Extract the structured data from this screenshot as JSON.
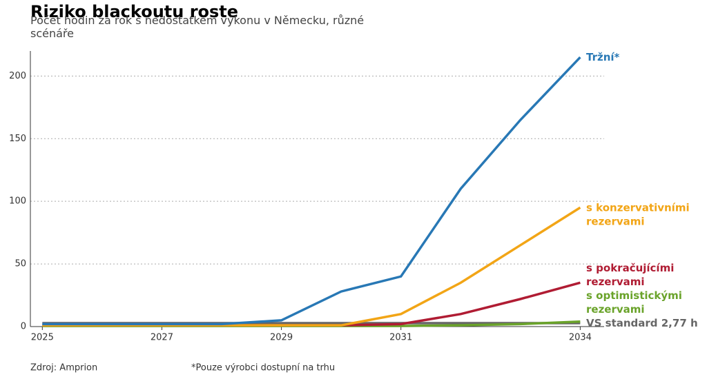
{
  "chart_data": {
    "type": "line",
    "title": "Riziko blackoutu roste",
    "subtitle": "Počet hodin za rok s nedostatkem výkonu v Německu, různé scénáře",
    "source": "Zdroj: Amprion",
    "note": "*Pouze výrobci dostupní na trhu",
    "x": [
      2025,
      2026,
      2027,
      2028,
      2029,
      2030,
      2031,
      2032,
      2033,
      2034
    ],
    "series": [
      {
        "name": "VS standard 2,77 h",
        "color": "#666666",
        "values": [
          2.77,
          2.77,
          2.77,
          2.77,
          2.77,
          2.77,
          2.77,
          2.77,
          2.77,
          2.77
        ]
      },
      {
        "name": "s optimistickými rezervami",
        "color": "#6aa32a",
        "values": [
          0.5,
          0.5,
          0.5,
          0.5,
          0.5,
          0.5,
          0.5,
          1,
          2,
          4
        ]
      },
      {
        "name": "s pokračujícími rezervami",
        "color": "#b01c33",
        "values": [
          1,
          1,
          1,
          1,
          1,
          1,
          2,
          10,
          22,
          35
        ]
      },
      {
        "name": "s konzervativními rezervami",
        "color": "#f2a516",
        "values": [
          1,
          1,
          1,
          1,
          1,
          1,
          10,
          35,
          65,
          95
        ]
      },
      {
        "name": "Tržní*",
        "color": "#2878b5",
        "values": [
          2,
          2,
          2,
          2,
          5,
          28,
          40,
          110,
          165,
          215
        ]
      }
    ],
    "xlim": [
      2024.8,
      2034.4
    ],
    "xticks": [
      2025,
      2027,
      2029,
      2031,
      2034
    ],
    "ylim": [
      0,
      220
    ],
    "yticks": [
      0,
      50,
      100,
      150,
      200
    ],
    "grid": true
  }
}
